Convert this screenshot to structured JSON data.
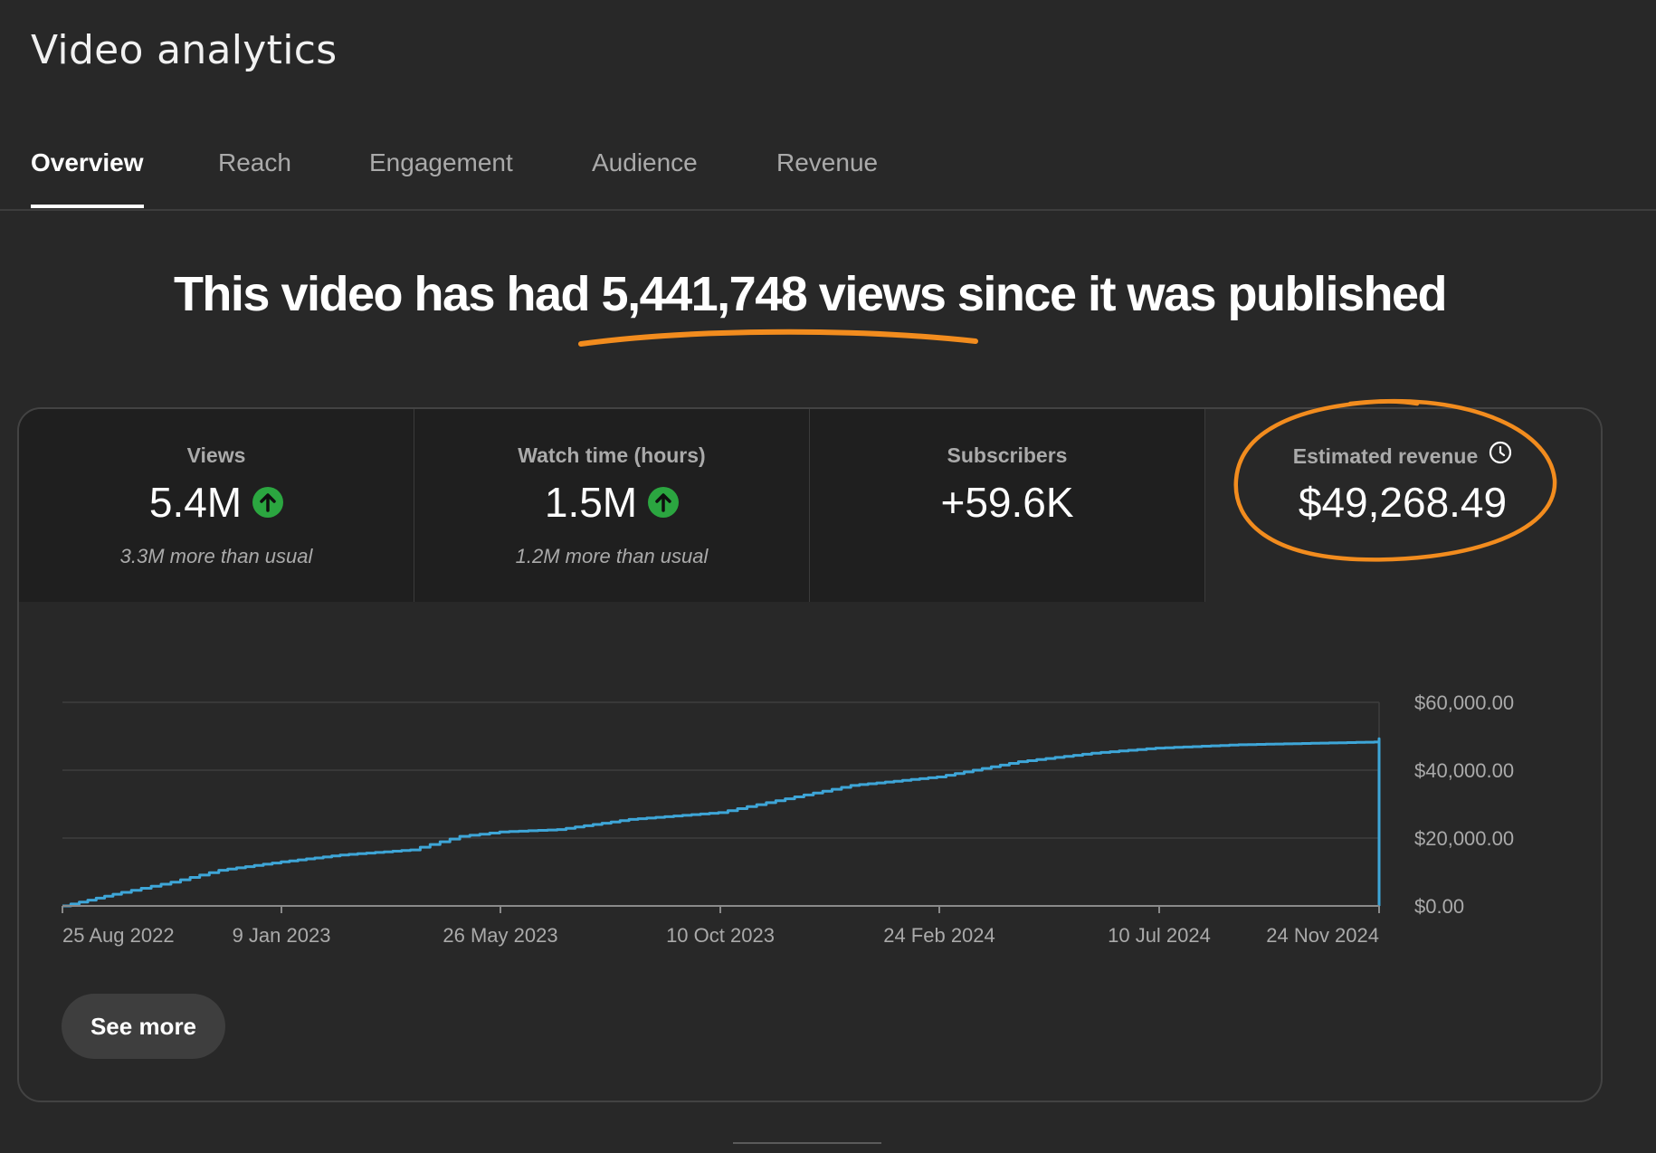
{
  "page": {
    "title": "Video analytics"
  },
  "tabs": [
    {
      "label": "Overview",
      "active": true
    },
    {
      "label": "Reach",
      "active": false
    },
    {
      "label": "Engagement",
      "active": false
    },
    {
      "label": "Audience",
      "active": false
    },
    {
      "label": "Revenue",
      "active": false
    }
  ],
  "headline": {
    "prefix": "This video has had ",
    "views": "5,441,748 views",
    "suffix": " since it was published"
  },
  "metrics": [
    {
      "label": "Views",
      "value": "5.4M",
      "trend": "up",
      "note": "3.3M more than usual"
    },
    {
      "label": "Watch time (hours)",
      "value": "1.5M",
      "trend": "up",
      "note": "1.2M more than usual"
    },
    {
      "label": "Subscribers",
      "value": "+59.6K",
      "trend": "",
      "note": ""
    },
    {
      "label": "Estimated revenue",
      "value": "$49,268.49",
      "trend": "",
      "note": "",
      "icon": "clock-icon"
    }
  ],
  "see_more_label": "See more",
  "colors": {
    "background": "#282828",
    "line": "#3ea6d8",
    "trend_up": "#2ba640",
    "annotation": "#f28c1e"
  },
  "chart_data": {
    "type": "line",
    "series": [
      {
        "x": [
          "2022-08-25",
          "2022-10-01",
          "2022-11-01",
          "2022-12-01",
          "2023-01-09",
          "2023-02-15",
          "2023-03-31",
          "2023-05-01",
          "2023-05-26",
          "2023-07-01",
          "2023-08-15",
          "2023-10-10",
          "2023-11-15",
          "2024-01-01",
          "2024-02-24",
          "2024-04-15",
          "2024-05-31",
          "2024-07-10",
          "2024-08-31",
          "2024-11-24",
          "2024-11-27"
        ],
        "y": [
          0,
          4000,
          7000,
          10500,
          13000,
          15000,
          16500,
          20500,
          21800,
          22500,
          25500,
          27500,
          31000,
          35500,
          38000,
          42500,
          45000,
          46500,
          47500,
          48300,
          49268.49
        ]
      }
    ],
    "x_ticks": [
      "25 Aug 2022",
      "9 Jan 2023",
      "26 May 2023",
      "10 Oct 2023",
      "24 Feb 2024",
      "10 Jul 2024",
      "24 Nov 2024"
    ],
    "y_ticks": [
      "$0.00",
      "$20,000.00",
      "$40,000.00",
      "$60,000.00"
    ],
    "ylim": [
      0,
      60000
    ],
    "xlim": [
      "2022-08-25",
      "2024-11-27"
    ],
    "title": "",
    "xlabel": "",
    "ylabel": "",
    "grid": true
  }
}
